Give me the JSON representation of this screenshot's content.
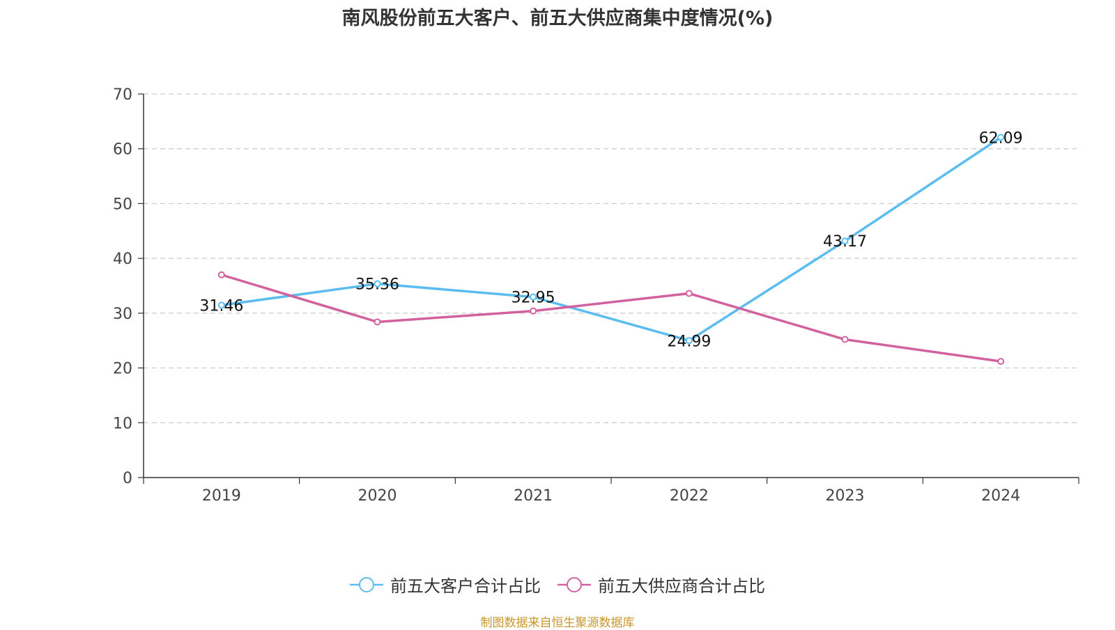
{
  "title": "南风股份前五大客户、前五大供应商集中度情况(%)",
  "footer": "制图数据来自恒生聚源数据库",
  "colors": {
    "customers": "#5bbdef",
    "suppliers": "#d1629f"
  },
  "chart_data": {
    "type": "line",
    "title": "南风股份前五大客户、前五大供应商集中度情况(%)",
    "xlabel": "",
    "ylabel": "",
    "categories": [
      "2019",
      "2020",
      "2021",
      "2022",
      "2023",
      "2024"
    ],
    "ylim": [
      0,
      70
    ],
    "yticks": [
      0,
      10,
      20,
      30,
      40,
      50,
      60,
      70
    ],
    "grid": true,
    "legend_position": "bottom",
    "series": [
      {
        "name": "前五大客户合计占比",
        "color": "#5bbdef",
        "show_labels": true,
        "values": [
          31.46,
          35.36,
          32.95,
          24.99,
          43.17,
          62.09
        ],
        "labels": [
          "31.46",
          "35.36",
          "32.95",
          "24.99",
          "43.17",
          "62.09"
        ]
      },
      {
        "name": "前五大供应商合计占比",
        "color": "#d1629f",
        "show_labels": false,
        "values": [
          37.0,
          28.4,
          30.4,
          33.6,
          25.2,
          21.2
        ]
      }
    ]
  }
}
